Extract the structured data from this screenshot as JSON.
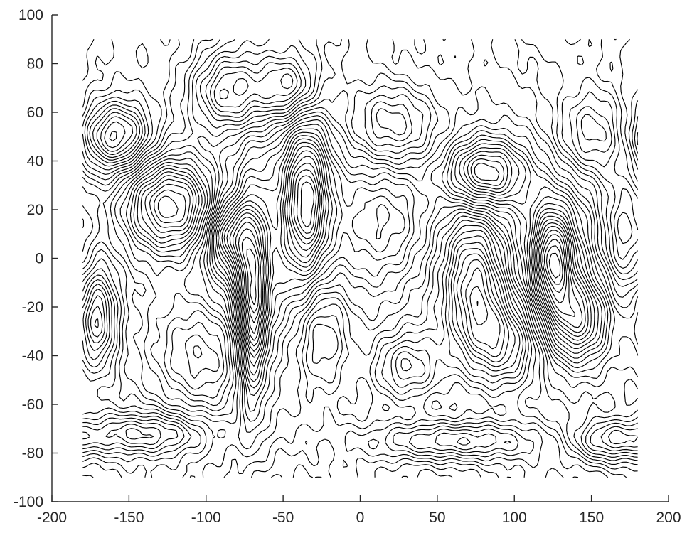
{
  "chart_data": {
    "type": "contour",
    "title": "",
    "xlabel": "",
    "ylabel": "",
    "xlim": [
      -200,
      200
    ],
    "ylim": [
      -100,
      100
    ],
    "xticks": [
      -200,
      -150,
      -100,
      -50,
      0,
      50,
      100,
      150,
      200
    ],
    "yticks": [
      -100,
      -80,
      -60,
      -40,
      -20,
      0,
      20,
      40,
      60,
      80,
      100
    ],
    "x_tick_labels": [
      "-200",
      "-150",
      "-100",
      "-50",
      "0",
      "50",
      "100",
      "150",
      "200"
    ],
    "y_tick_labels": [
      "-100",
      "-80",
      "-60",
      "-40",
      "-20",
      "0",
      "20",
      "40",
      "60",
      "80",
      "100"
    ],
    "data_extent": {
      "x": [
        -180,
        180
      ],
      "y": [
        -90,
        90
      ]
    },
    "line_color": "#000000",
    "axis_color": "#262626",
    "grid": false,
    "legend": "none",
    "contour_features": [
      {
        "x": -122,
        "y": 22,
        "sign": 1,
        "amp": 1.0,
        "sx": 22,
        "sy": 14
      },
      {
        "x": -158,
        "y": 50,
        "sign": -1,
        "amp": 0.8,
        "sx": 16,
        "sy": 10
      },
      {
        "x": -85,
        "y": 68,
        "sign": 1,
        "amp": 0.7,
        "sx": 18,
        "sy": 12
      },
      {
        "x": -45,
        "y": 70,
        "sign": 1,
        "amp": 0.6,
        "sx": 14,
        "sy": 10
      },
      {
        "x": -35,
        "y": 25,
        "sign": -1,
        "amp": 0.9,
        "sx": 10,
        "sy": 22
      },
      {
        "x": -70,
        "y": -20,
        "sign": -1,
        "amp": 1.0,
        "sx": 7,
        "sy": 28
      },
      {
        "x": -85,
        "y": 10,
        "sign": -1,
        "amp": 0.7,
        "sx": 10,
        "sy": 10
      },
      {
        "x": -100,
        "y": -40,
        "sign": 1,
        "amp": 0.6,
        "sx": 25,
        "sy": 18
      },
      {
        "x": -25,
        "y": -30,
        "sign": 1,
        "amp": 0.6,
        "sx": 14,
        "sy": 18
      },
      {
        "x": 20,
        "y": 15,
        "sign": -1,
        "amp": 0.5,
        "sx": 20,
        "sy": 18
      },
      {
        "x": 20,
        "y": 55,
        "sign": 1,
        "amp": 0.5,
        "sx": 20,
        "sy": 12
      },
      {
        "x": 80,
        "y": 35,
        "sign": -1,
        "amp": 0.9,
        "sx": 18,
        "sy": 10
      },
      {
        "x": 75,
        "y": -10,
        "sign": 1,
        "amp": 0.8,
        "sx": 14,
        "sy": 20
      },
      {
        "x": 95,
        "y": -35,
        "sign": 1,
        "amp": 0.7,
        "sx": 18,
        "sy": 14
      },
      {
        "x": 125,
        "y": 0,
        "sign": -1,
        "amp": 1.0,
        "sx": 9,
        "sy": 14
      },
      {
        "x": 140,
        "y": -25,
        "sign": -1,
        "amp": 0.7,
        "sx": 14,
        "sy": 12
      },
      {
        "x": 150,
        "y": 50,
        "sign": 1,
        "amp": 0.6,
        "sx": 18,
        "sy": 14
      },
      {
        "x": 170,
        "y": 10,
        "sign": 1,
        "amp": 0.6,
        "sx": 12,
        "sy": 18
      },
      {
        "x": 30,
        "y": -45,
        "sign": 1,
        "amp": 0.5,
        "sx": 16,
        "sy": 10
      },
      {
        "x": -170,
        "y": -25,
        "sign": -1,
        "amp": 0.6,
        "sx": 8,
        "sy": 14
      },
      {
        "x": -140,
        "y": -72,
        "sign": -1,
        "amp": 0.5,
        "sx": 30,
        "sy": 6
      },
      {
        "x": 60,
        "y": -75,
        "sign": 1,
        "amp": 0.6,
        "sx": 40,
        "sy": 6
      },
      {
        "x": 160,
        "y": -75,
        "sign": -1,
        "amp": 0.5,
        "sx": 18,
        "sy": 6
      }
    ],
    "contour_levels": 34
  }
}
